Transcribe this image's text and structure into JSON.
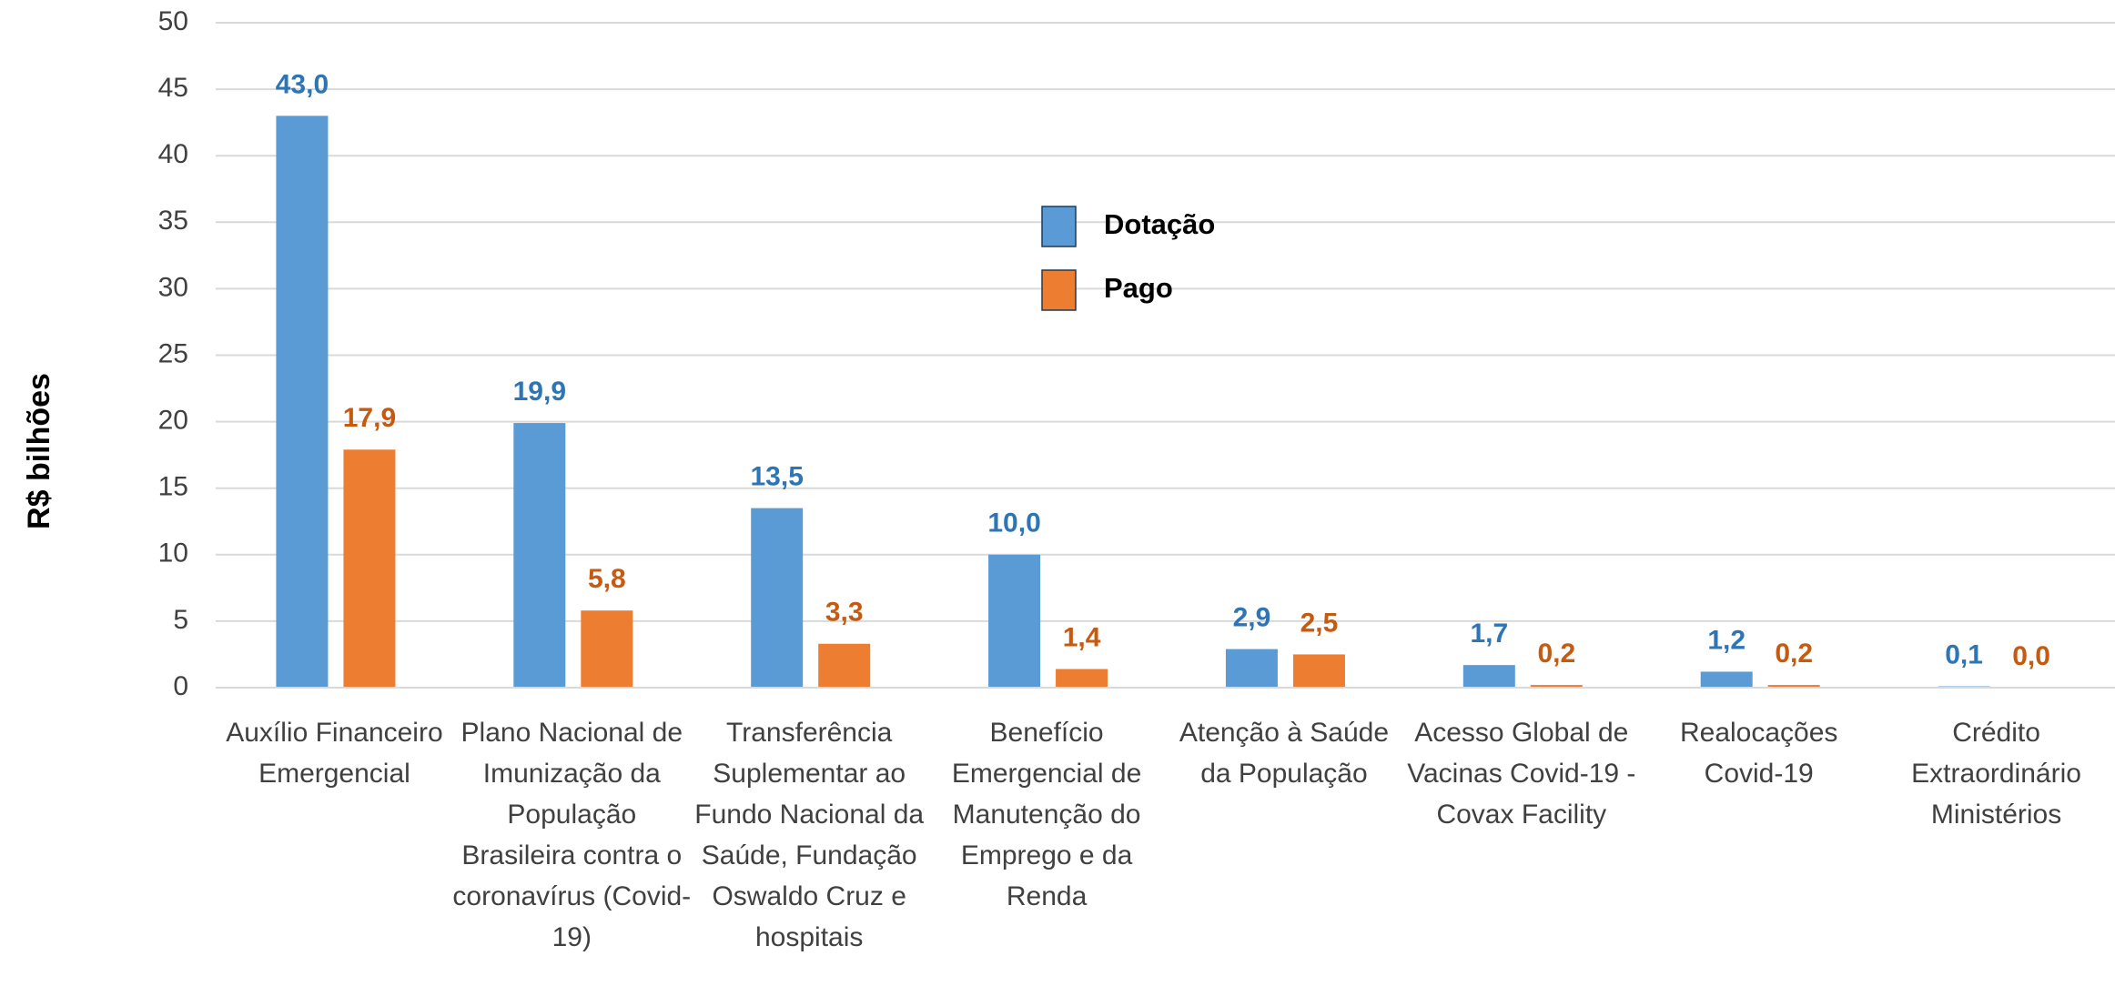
{
  "chart_data": {
    "type": "bar",
    "y_axis_label": "R$ bilhões",
    "categories": [
      "Auxílio Financeiro Emergencial",
      "Plano Nacional de Imunização da População Brasileira contra o coronavírus (Covid-19)",
      "Transferência Suplementar ao Fundo Nacional da Saúde, Fundação Oswaldo Cruz e hospitais",
      "Benefício Emergencial de Manutenção do Emprego e da Renda",
      "Atenção à Saúde da População",
      "Acesso Global de Vacinas Covid-19 - Covax Facility",
      "Realocações Covid-19",
      "Crédito Extraordinário Ministérios"
    ],
    "series": [
      {
        "name": "Dotação",
        "color": "#5b9bd5",
        "label_color": "#2e75b6",
        "values": [
          43.0,
          19.9,
          13.5,
          10.0,
          2.9,
          1.7,
          1.2,
          0.1
        ],
        "value_labels": [
          "43,0",
          "19,9",
          "13,5",
          "10,0",
          "2,9",
          "1,7",
          "1,2",
          "0,1"
        ]
      },
      {
        "name": "Pago",
        "color": "#ed7d31",
        "label_color": "#c55a11",
        "values": [
          17.9,
          5.8,
          3.3,
          1.4,
          2.5,
          0.2,
          0.2,
          0.0
        ],
        "value_labels": [
          "17,9",
          "5,8",
          "3,3",
          "1,4",
          "2,5",
          "0,2",
          "0,2",
          "0,0"
        ]
      }
    ],
    "ylim": [
      0,
      50
    ],
    "yticks": [
      0,
      5,
      10,
      15,
      20,
      25,
      30,
      35,
      40,
      45,
      50
    ],
    "grid": true,
    "legend": "top-center"
  }
}
